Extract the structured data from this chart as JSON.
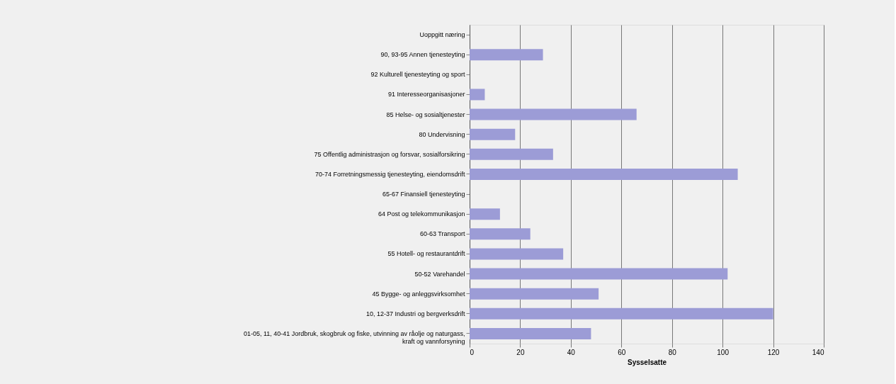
{
  "chart_data": {
    "type": "bar",
    "orientation": "horizontal",
    "xlabel": "Sysselsatte",
    "categories": [
      "Uoppgitt næring",
      "90, 93-95 Annen tjenesteyting",
      "92 Kulturell tjenesteyting og sport",
      "91 Interesseorganisasjoner",
      "85 Helse- og sosialtjenester",
      "80 Undervisning",
      "75 Offentlig administrasjon og forsvar, sosialforsikring",
      "70-74 Forretningsmessig tjenesteyting, eiendomsdrift",
      "65-67 Finansiell tjenesteyting",
      "64 Post og telekommunikasjon",
      "60-63 Transport",
      "55 Hotell- og restaurantdrift",
      "50-52 Varehandel",
      "45 Bygge- og anleggsvirksomhet",
      "10, 12-37 Industri og bergverksdrift",
      "01-05, 11, 40-41 Jordbruk, skogbruk og fiske, utvinning av råolje og naturgass,\nkraft og vannforsyning"
    ],
    "values": [
      0,
      29,
      0,
      6,
      66,
      18,
      33,
      106,
      0,
      12,
      24,
      37,
      102,
      51,
      120,
      48
    ],
    "color": "#9c9cd6",
    "xlim": [
      0,
      140
    ],
    "xticks": [
      0,
      20,
      40,
      60,
      80,
      100,
      120,
      140
    ],
    "grid": "x"
  }
}
